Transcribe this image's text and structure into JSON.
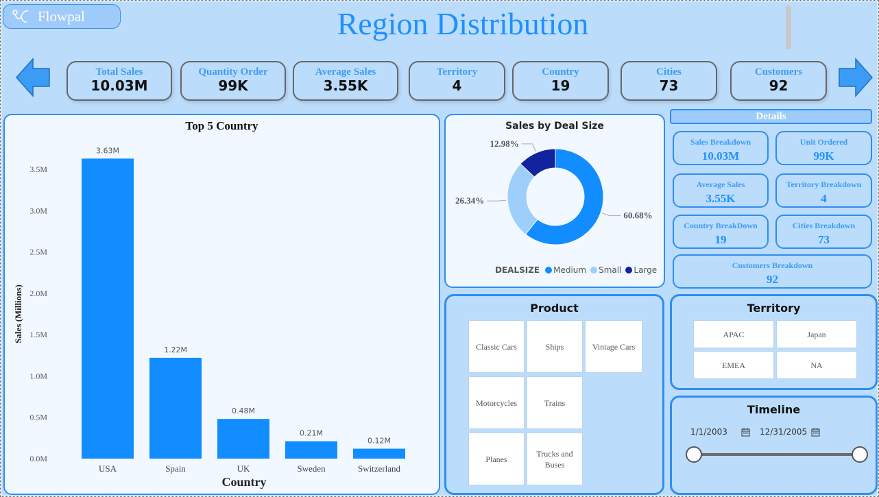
{
  "app": {
    "brand": "Flowpal",
    "title": "Region Distribution"
  },
  "kpis": [
    {
      "label": "Total Sales",
      "value": "10.03M"
    },
    {
      "label": "Quantity Order",
      "value": "99K"
    },
    {
      "label": "Average Sales",
      "value": "3.55K"
    },
    {
      "label": "Territory",
      "value": "4"
    },
    {
      "label": "Country",
      "value": "19"
    },
    {
      "label": "Cities",
      "value": "73"
    },
    {
      "label": "Customers",
      "value": "92"
    }
  ],
  "details": {
    "header": "Details",
    "cards": [
      {
        "label": "Sales Breakdown",
        "value": "10.03M"
      },
      {
        "label": "Unit Ordered",
        "value": "99K"
      },
      {
        "label": "Average Sales",
        "value": "3.55K"
      },
      {
        "label": "Territory Breakdown",
        "value": "4"
      },
      {
        "label": "Country BreakDown",
        "value": "19"
      },
      {
        "label": "Cities Breakdown",
        "value": "73"
      },
      {
        "label": "Customers Breakdown",
        "value": "92"
      }
    ]
  },
  "product": {
    "title": "Product",
    "items": [
      "Classic Cars",
      "Ships",
      "Vintage Cars",
      "Motorcycles",
      "Trains",
      "Planes",
      "Trucks and Buses"
    ]
  },
  "territory": {
    "title": "Territory",
    "items": [
      "APAC",
      "Japan",
      "EMEA",
      "NA"
    ]
  },
  "timeline": {
    "title": "Timeline",
    "start": "1/1/2003",
    "end": "12/31/2005",
    "range_fraction": [
      0.0,
      1.0
    ]
  },
  "colors": {
    "accent": "#1e90ff",
    "bar": "#118dff",
    "medium": "#118dff",
    "small": "#9ecffa",
    "large": "#12239e",
    "band": "#bcdcfc"
  },
  "chart_data": [
    {
      "type": "bar",
      "title": "Top 5 Country",
      "xlabel": "Country",
      "ylabel": "Sales (Millions)",
      "categories": [
        "USA",
        "Spain",
        "UK",
        "Sweden",
        "Switzerland"
      ],
      "values": [
        3.63,
        1.22,
        0.48,
        0.21,
        0.12
      ],
      "data_labels": [
        "3.63M",
        "1.22M",
        "0.48M",
        "0.21M",
        "0.12M"
      ],
      "ylim": [
        0,
        3.5
      ],
      "yticks": [
        {
          "value": 0,
          "label": "0.0M"
        },
        {
          "value": 0.5,
          "label": "0.5M"
        },
        {
          "value": 1.0,
          "label": "1.0M"
        },
        {
          "value": 1.5,
          "label": "1.5M"
        },
        {
          "value": 2.0,
          "label": "2.0M"
        },
        {
          "value": 2.5,
          "label": "2.5M"
        },
        {
          "value": 3.0,
          "label": "3.0M"
        },
        {
          "value": 3.5,
          "label": "3.5M"
        }
      ],
      "grid": false
    },
    {
      "type": "pie",
      "title": "Sales by Deal Size",
      "legend_title": "DEALSIZE",
      "legend_position": "bottom",
      "slices": [
        {
          "name": "Medium",
          "value": 60.68,
          "label": "60.68%"
        },
        {
          "name": "Small",
          "value": 26.34,
          "label": "26.34%"
        },
        {
          "name": "Large",
          "value": 12.98,
          "label": "12.98%"
        }
      ]
    }
  ]
}
